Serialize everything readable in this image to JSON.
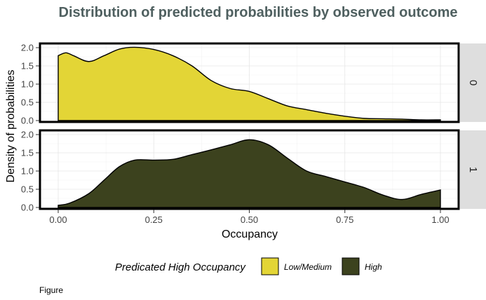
{
  "chart_data": {
    "type": "area",
    "title": "Distribution of predicted probabilities by observed outcome",
    "xlabel": "Occupancy",
    "ylabel": "Density of probabilities",
    "xlim": [
      0,
      1
    ],
    "ylim": [
      0,
      2.1
    ],
    "x_ticks": [
      "0.00",
      "0.25",
      "0.50",
      "0.75",
      "1.00"
    ],
    "y_ticks": [
      "0.0",
      "0.5",
      "1.0",
      "1.5",
      "2.0"
    ],
    "grid": true,
    "legend": {
      "title": "Predicated High Occupancy",
      "position": "bottom",
      "entries": [
        {
          "label": "Low/Medium",
          "color": "#e3d536"
        },
        {
          "label": "High",
          "color": "#3c421e"
        }
      ]
    },
    "panels": [
      {
        "strip": "0",
        "series": "Low/Medium",
        "color": "#e3d536",
        "x": [
          0.0,
          0.02,
          0.04,
          0.08,
          0.12,
          0.16,
          0.2,
          0.25,
          0.3,
          0.35,
          0.4,
          0.45,
          0.5,
          0.55,
          0.6,
          0.65,
          0.7,
          0.75,
          0.8,
          0.85,
          0.9,
          0.95,
          1.0
        ],
        "y": [
          1.78,
          1.86,
          1.78,
          1.62,
          1.78,
          1.96,
          2.01,
          1.95,
          1.78,
          1.5,
          1.1,
          0.88,
          0.8,
          0.6,
          0.4,
          0.3,
          0.2,
          0.12,
          0.06,
          0.05,
          0.04,
          0.02,
          0.02
        ]
      },
      {
        "strip": "1",
        "series": "High",
        "color": "#3c421e",
        "x": [
          0.0,
          0.03,
          0.08,
          0.12,
          0.16,
          0.2,
          0.25,
          0.3,
          0.35,
          0.4,
          0.45,
          0.5,
          0.55,
          0.6,
          0.65,
          0.7,
          0.75,
          0.8,
          0.85,
          0.9,
          0.95,
          1.0
        ],
        "y": [
          0.06,
          0.12,
          0.38,
          0.75,
          1.12,
          1.3,
          1.3,
          1.32,
          1.45,
          1.58,
          1.72,
          1.86,
          1.72,
          1.35,
          1.0,
          0.85,
          0.7,
          0.55,
          0.34,
          0.22,
          0.36,
          0.48
        ]
      }
    ]
  },
  "caption": "Figure"
}
